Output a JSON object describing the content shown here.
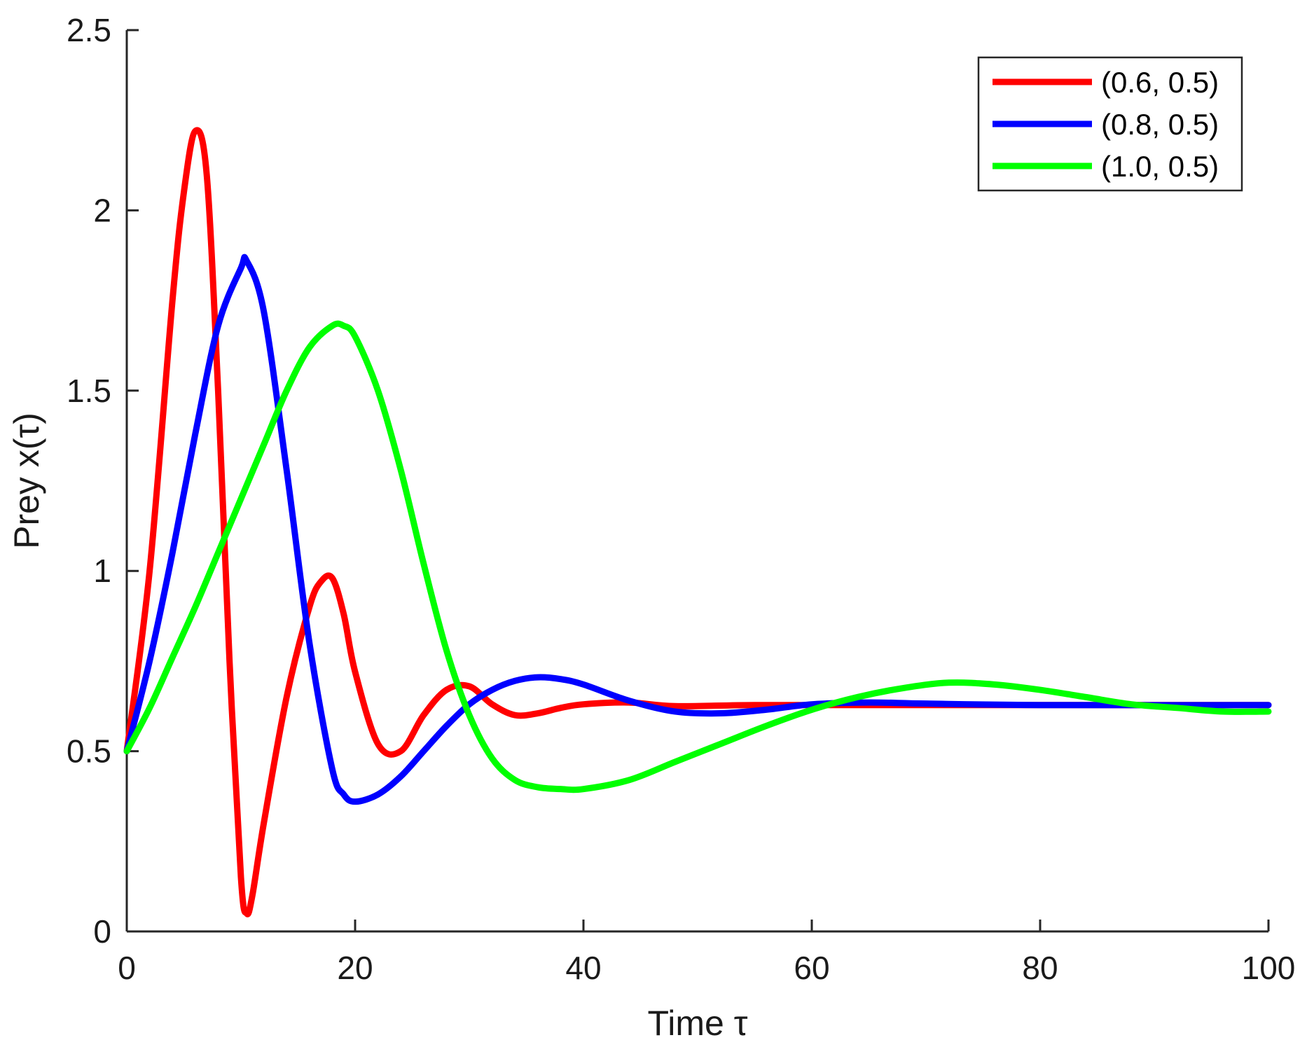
{
  "chart_data": {
    "type": "line",
    "title": "",
    "xlabel": "Time τ",
    "ylabel": "Prey x(τ)",
    "xlim": [
      0,
      100
    ],
    "ylim": [
      0,
      2.5
    ],
    "xticks": [
      0,
      20,
      40,
      60,
      80,
      100
    ],
    "yticks": [
      0,
      0.5,
      1,
      1.5,
      2,
      2.5
    ],
    "xtick_labels": [
      "0",
      "20",
      "40",
      "60",
      "80",
      "100"
    ],
    "ytick_labels": [
      "0",
      "0.5",
      "1",
      "1.5",
      "2",
      "2.5"
    ],
    "grid": false,
    "legend_position": "top-right",
    "series": [
      {
        "name": "(0.6, 0.5)",
        "color": "#ff0000",
        "x": [
          0,
          2,
          4,
          5,
          6,
          7,
          8,
          9,
          10,
          10.5,
          11,
          12,
          14,
          16,
          17,
          18,
          19,
          20,
          22,
          24,
          26,
          28,
          30,
          32,
          34,
          36,
          38,
          40,
          44,
          48,
          55,
          65,
          80,
          100
        ],
        "y": [
          0.5,
          1.0,
          1.75,
          2.05,
          2.22,
          2.1,
          1.5,
          0.75,
          0.15,
          0.05,
          0.1,
          0.3,
          0.65,
          0.9,
          0.97,
          0.98,
          0.88,
          0.72,
          0.52,
          0.5,
          0.6,
          0.67,
          0.68,
          0.63,
          0.6,
          0.605,
          0.62,
          0.63,
          0.635,
          0.625,
          0.628,
          0.628,
          0.628,
          0.628
        ]
      },
      {
        "name": "(0.8, 0.5)",
        "color": "#0000ff",
        "x": [
          0,
          2,
          4,
          6,
          8,
          10,
          10.5,
          12,
          14,
          16,
          18,
          19,
          20,
          22,
          24,
          26,
          28,
          30,
          32,
          34,
          36,
          38,
          40,
          44,
          48,
          52,
          56,
          60,
          65,
          70,
          80,
          100
        ],
        "y": [
          0.5,
          0.75,
          1.05,
          1.38,
          1.68,
          1.84,
          1.86,
          1.72,
          1.28,
          0.8,
          0.45,
          0.38,
          0.36,
          0.38,
          0.43,
          0.5,
          0.57,
          0.63,
          0.67,
          0.695,
          0.705,
          0.7,
          0.685,
          0.64,
          0.61,
          0.605,
          0.615,
          0.63,
          0.635,
          0.632,
          0.628,
          0.628
        ]
      },
      {
        "name": "(1.0, 0.5)",
        "color": "#00ff00",
        "x": [
          0,
          2,
          4,
          6,
          8,
          10,
          12,
          14,
          16,
          18,
          19,
          20,
          22,
          24,
          26,
          28,
          30,
          32,
          34,
          36,
          38,
          40,
          44,
          48,
          52,
          56,
          60,
          64,
          68,
          72,
          76,
          80,
          84,
          88,
          92,
          96,
          100
        ],
        "y": [
          0.5,
          0.62,
          0.76,
          0.9,
          1.05,
          1.2,
          1.35,
          1.5,
          1.62,
          1.68,
          1.68,
          1.65,
          1.5,
          1.28,
          1.02,
          0.78,
          0.6,
          0.48,
          0.42,
          0.4,
          0.395,
          0.395,
          0.42,
          0.47,
          0.52,
          0.57,
          0.615,
          0.65,
          0.675,
          0.69,
          0.685,
          0.67,
          0.65,
          0.63,
          0.62,
          0.61,
          0.61
        ]
      }
    ]
  }
}
